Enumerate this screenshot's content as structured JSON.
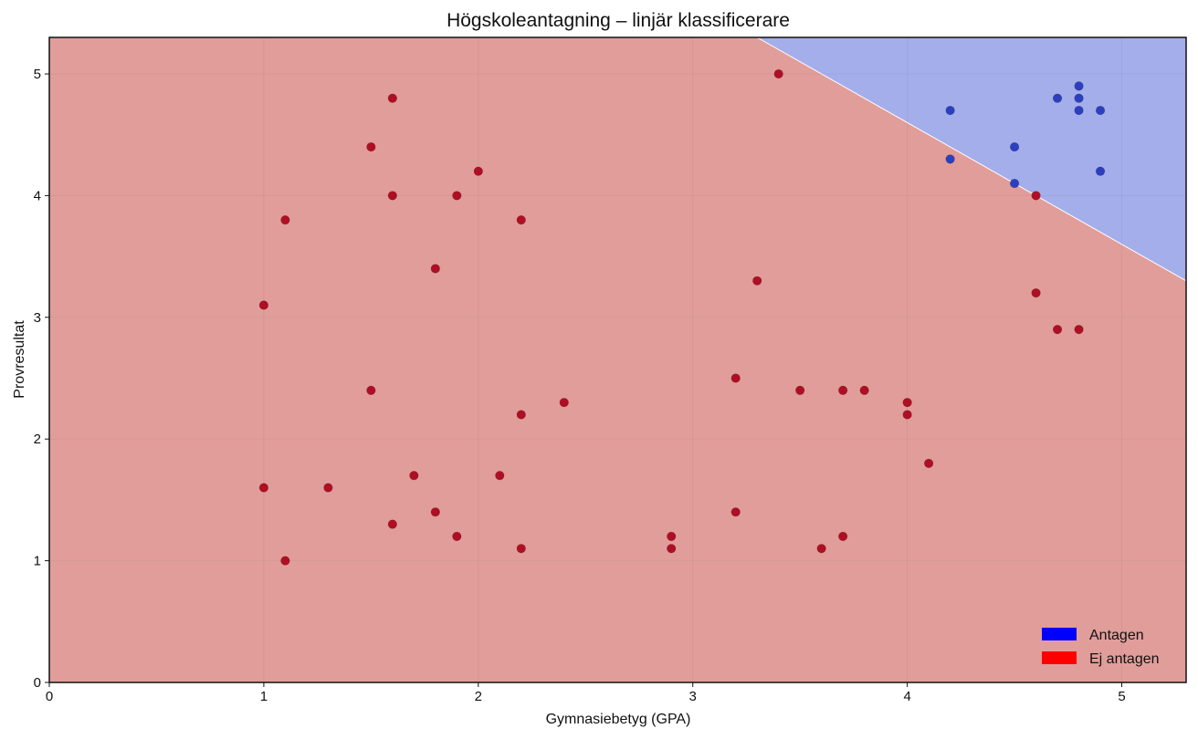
{
  "chart_data": {
    "type": "scatter",
    "title": "Högskoleantagning – linjär klassificerare",
    "xlabel": "Gymnasiebetyg (GPA)",
    "ylabel": "Provresultat",
    "xlim": [
      0,
      5.3
    ],
    "ylim": [
      0,
      5.3
    ],
    "xticks": [
      "0",
      "1",
      "2",
      "3",
      "4",
      "5"
    ],
    "yticks": [
      "0",
      "1",
      "2",
      "3",
      "4",
      "5"
    ],
    "grid": true,
    "legend_position": "bottom-right",
    "decision_boundary": {
      "points": [
        [
          3.3,
          5.3
        ],
        [
          5.3,
          3.3
        ]
      ]
    },
    "regions": [
      {
        "name": "Antagen",
        "side": "above",
        "color": "#a4aeea"
      },
      {
        "name": "Ej antagen",
        "side": "below",
        "color": "#e19d9a"
      }
    ],
    "series": [
      {
        "name": "Antagen",
        "color": "#2c3fbf",
        "legend_color": "#0000ff",
        "points": [
          [
            4.2,
            4.7
          ],
          [
            4.2,
            4.3
          ],
          [
            4.5,
            4.4
          ],
          [
            4.5,
            4.1
          ],
          [
            4.7,
            4.8
          ],
          [
            4.8,
            4.9
          ],
          [
            4.8,
            4.8
          ],
          [
            4.8,
            4.7
          ],
          [
            4.9,
            4.7
          ],
          [
            4.9,
            4.2
          ]
        ]
      },
      {
        "name": "Ej antagen",
        "color": "#b00e24",
        "legend_color": "#ff0000",
        "points": [
          [
            1.0,
            3.1
          ],
          [
            1.0,
            1.6
          ],
          [
            1.1,
            3.8
          ],
          [
            1.1,
            1.0
          ],
          [
            1.3,
            1.6
          ],
          [
            1.5,
            4.4
          ],
          [
            1.5,
            2.4
          ],
          [
            1.6,
            4.8
          ],
          [
            1.6,
            4.0
          ],
          [
            1.6,
            1.3
          ],
          [
            1.7,
            1.7
          ],
          [
            1.8,
            3.4
          ],
          [
            1.8,
            1.4
          ],
          [
            1.9,
            4.0
          ],
          [
            1.9,
            1.2
          ],
          [
            2.0,
            4.2
          ],
          [
            2.1,
            1.7
          ],
          [
            2.2,
            3.8
          ],
          [
            2.2,
            2.2
          ],
          [
            2.2,
            1.1
          ],
          [
            2.4,
            2.3
          ],
          [
            2.9,
            1.2
          ],
          [
            2.9,
            1.1
          ],
          [
            3.2,
            2.5
          ],
          [
            3.2,
            1.4
          ],
          [
            3.3,
            3.3
          ],
          [
            3.4,
            5.0
          ],
          [
            3.5,
            2.4
          ],
          [
            3.6,
            1.1
          ],
          [
            3.7,
            2.4
          ],
          [
            3.7,
            1.2
          ],
          [
            3.8,
            2.4
          ],
          [
            4.0,
            2.3
          ],
          [
            4.0,
            2.2
          ],
          [
            4.1,
            1.8
          ],
          [
            4.6,
            4.0
          ],
          [
            4.6,
            3.2
          ],
          [
            4.7,
            2.9
          ],
          [
            4.8,
            2.9
          ]
        ]
      }
    ]
  }
}
